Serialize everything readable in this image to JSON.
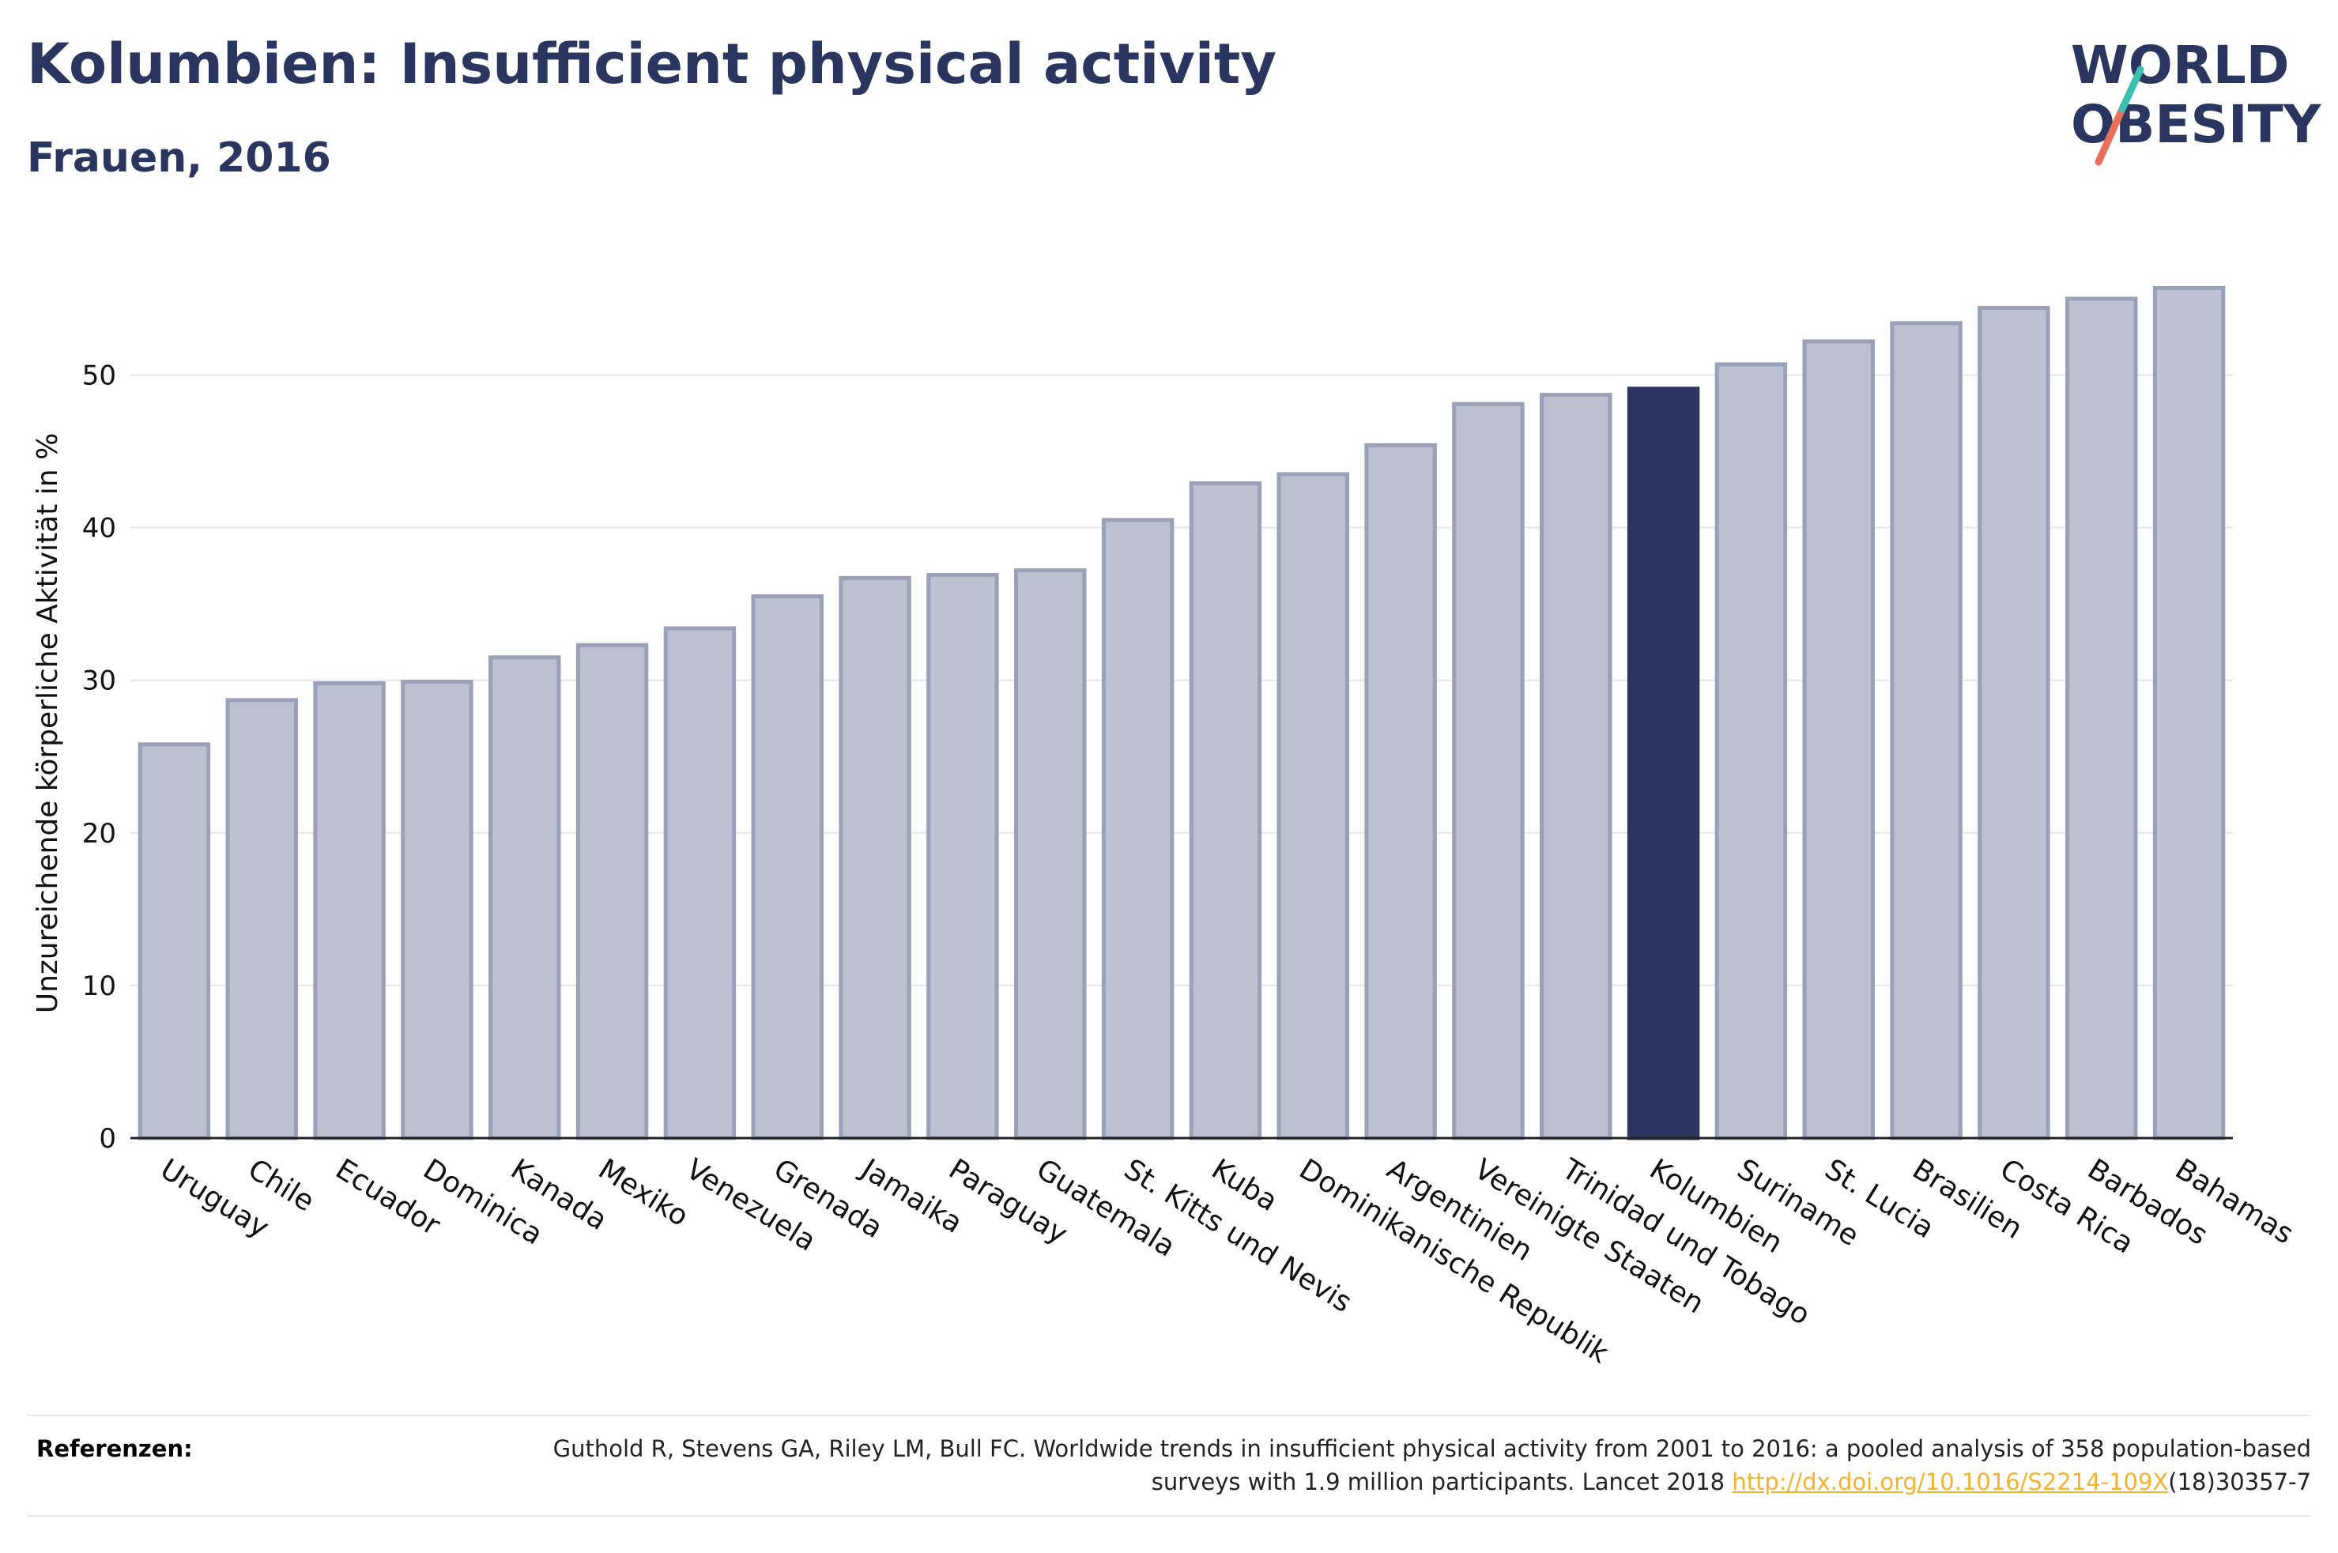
{
  "header": {
    "title": "Kolumbien: Insufficient physical activity",
    "subtitle": "Frauen, 2016"
  },
  "logo": {
    "line1": "WORLD",
    "line2": "OBESITY"
  },
  "chart_data": {
    "type": "bar",
    "title": "Kolumbien: Insufficient physical activity",
    "subtitle": "Frauen, 2016",
    "ylabel": "Unzureichende körperliche Aktivität in %",
    "xlabel": "",
    "ylim": [
      0,
      58
    ],
    "yticks": [
      0,
      10,
      20,
      30,
      40,
      50
    ],
    "grid": true,
    "highlight": "Kolumbien",
    "categories": [
      "Uruguay",
      "Chile",
      "Ecuador",
      "Dominica",
      "Kanada",
      "Mexiko",
      "Venezuela",
      "Grenada",
      "Jamaika",
      "Paraguay",
      "Guatemala",
      "St. Kitts und Nevis",
      "Kuba",
      "Dominikanische Republik",
      "Argentinien",
      "Vereinigte Staaten",
      "Trinidad und Tobago",
      "Kolumbien",
      "Suriname",
      "St. Lucia",
      "Brasilien",
      "Costa Rica",
      "Barbados",
      "Bahamas"
    ],
    "values": [
      25.8,
      28.7,
      29.8,
      29.9,
      31.5,
      32.3,
      33.4,
      35.5,
      36.7,
      36.9,
      37.2,
      40.5,
      42.9,
      43.5,
      45.4,
      48.1,
      48.7,
      49.1,
      50.7,
      52.2,
      53.4,
      54.4,
      55.0,
      55.7
    ],
    "colors": {
      "bar": "#bdc1cf",
      "bar_border": "#9aa0b8",
      "highlight": "#2a3560",
      "grid": "#e6e6e6"
    }
  },
  "references": {
    "label": "Referenzen:",
    "text_before": "Guthold R, Stevens GA, Riley LM, Bull FC. Worldwide trends in insufficient physical activity from 2001 to 2016: a pooled analysis of 358 population-based surveys with 1.9 million participants. Lancet 2018 ",
    "link": "http://dx.doi.org/10.1016/S2214-109X",
    "text_after": "(18)30357-7"
  }
}
